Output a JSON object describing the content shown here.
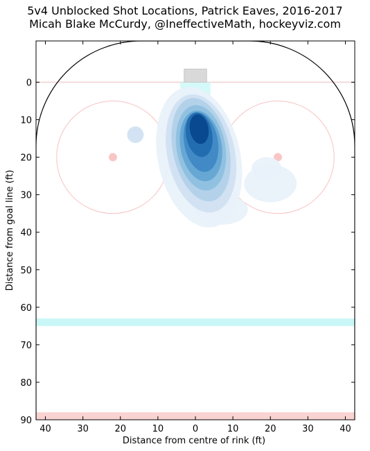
{
  "title_line1": "5v4 Unblocked Shot Locations, Patrick Eaves, 2016-2017",
  "title_line2": "Micah Blake McCurdy, @IneffectiveMath, hockeyviz.com",
  "chart_data": {
    "type": "heatmap",
    "xlabel": "Distance from centre of rink (ft)",
    "ylabel": "Distance from goal line (ft)",
    "xlim": [
      -42.5,
      42.5
    ],
    "ylim": [
      -11,
      90
    ],
    "y_inverted": true,
    "x_ticks": [
      -40,
      -30,
      -20,
      -10,
      0,
      10,
      20,
      30,
      40
    ],
    "x_tick_labels": [
      "40",
      "30",
      "20",
      "10",
      "0",
      "10",
      "20",
      "30",
      "40"
    ],
    "y_ticks": [
      0,
      10,
      20,
      30,
      40,
      50,
      60,
      70,
      80,
      90
    ],
    "y_tick_labels": [
      "0",
      "10",
      "20",
      "30",
      "40",
      "50",
      "60",
      "70",
      "80",
      "90"
    ],
    "grid": false,
    "colormap": [
      "#e8f1fa",
      "#cfe1f2",
      "#b0d0e9",
      "#8ebfe0",
      "#63a5d3",
      "#3e88c4",
      "#1f6aae",
      "#08478d"
    ],
    "density_levels": [
      {
        "cx": 1,
        "cy": 20,
        "rx": 11,
        "ry": 19,
        "rot": -12
      },
      {
        "cx": 1.5,
        "cy": 19,
        "rx": 9,
        "ry": 16,
        "rot": -12
      },
      {
        "cx": 1.5,
        "cy": 18,
        "rx": 7.5,
        "ry": 14,
        "rot": -12
      },
      {
        "cx": 1.5,
        "cy": 17.5,
        "rx": 6.5,
        "ry": 11.5,
        "rot": -10
      },
      {
        "cx": 1.5,
        "cy": 17,
        "rx": 5.5,
        "ry": 9.5,
        "rot": -10
      },
      {
        "cx": 1.5,
        "cy": 16,
        "rx": 4.5,
        "ry": 8,
        "rot": -10
      },
      {
        "cx": 1,
        "cy": 14,
        "rx": 3.5,
        "ry": 6,
        "rot": -10
      },
      {
        "cx": 1,
        "cy": 12.5,
        "rx": 2.5,
        "ry": 4,
        "rot": -10
      }
    ],
    "density_extras": [
      {
        "cx": 20,
        "cy": 27,
        "rx": 7,
        "ry": 5,
        "rot": 0,
        "level": 0
      },
      {
        "cx": 19,
        "cy": 23,
        "rx": 4,
        "ry": 3,
        "rot": 0,
        "level": 0
      },
      {
        "cx": -16,
        "cy": 14,
        "rx": 2.2,
        "ry": 2.2,
        "rot": 0,
        "level": 1
      },
      {
        "cx": 7,
        "cy": 34,
        "rx": 7,
        "ry": 4,
        "rot": 0,
        "level": 0
      }
    ],
    "rink": {
      "faceoff_circles": [
        {
          "x": -22,
          "y": 20,
          "r": 15
        },
        {
          "x": 22,
          "y": 20,
          "r": 15
        }
      ],
      "faceoff_dots": [
        {
          "x": -22,
          "y": 20
        },
        {
          "x": 22,
          "y": 20
        }
      ],
      "goal_line_y": 0,
      "blue_line_y": 64,
      "centre_line_y": 89,
      "net": {
        "x0": -3,
        "x1": 3,
        "y0": -3.5,
        "y1": 0
      },
      "crease": {
        "x0": -4,
        "x1": 4,
        "y0": 0,
        "y1": 6
      },
      "corner_radius": 28,
      "end_boards_y": -11,
      "colors": {
        "circle": "#f7c2c2",
        "dot": "#f9c6c6",
        "goal_line": "#f3d9d9",
        "blue_line": "#c9f7f7",
        "centre_line": "#f9d2d2",
        "net": "#d9d9d9",
        "crease": "#c9f7f7",
        "boards": "#000000"
      }
    }
  }
}
